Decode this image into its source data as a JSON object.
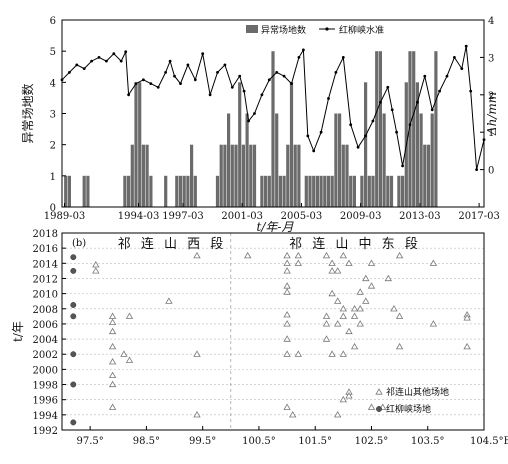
{
  "chart_data": [
    {
      "type": "bar+line",
      "panel": "a",
      "xlabel": "t/年-月",
      "ylabel_left": "异常场地数",
      "ylabel_right": "Δh/mm",
      "x_tick_labels": [
        "1989-03",
        "1994-03",
        "1997-03",
        "2001-03",
        "2005-03",
        "2009-03",
        "2013-03",
        "2017-03"
      ],
      "x_tick_years": [
        1989.17,
        1994.17,
        1997.17,
        2001.17,
        2005.17,
        2009.17,
        2013.17,
        2017.17
      ],
      "x_range": [
        1989.0,
        2017.5
      ],
      "ylim_left": [
        0,
        6
      ],
      "y_ticks_left": [
        0,
        1,
        2,
        3,
        4,
        5,
        6
      ],
      "ylim_right": [
        -1,
        4
      ],
      "y_ticks_right": [
        0,
        1,
        2,
        3,
        4
      ],
      "legend": [
        "异常场地数",
        "红柳峡水准"
      ],
      "bar_start": 1989.25,
      "bar_step": 0.25,
      "bars": [
        1,
        1,
        0,
        0,
        0,
        1,
        1,
        0,
        0,
        0,
        0,
        0,
        0,
        0,
        0,
        0,
        1,
        1,
        2,
        4,
        4,
        2,
        2,
        1,
        0,
        0,
        0,
        1,
        0,
        0,
        1,
        1,
        1,
        1,
        2,
        1,
        0,
        0,
        0,
        0,
        0,
        1,
        2,
        2,
        3,
        2,
        2,
        4,
        2,
        3,
        2,
        2,
        0,
        1,
        1,
        1,
        5,
        3,
        1,
        1,
        2,
        4,
        2,
        2,
        0,
        1,
        1,
        1,
        1,
        1,
        1,
        1,
        1,
        3,
        3,
        2,
        2,
        1,
        1,
        0,
        1,
        4,
        1,
        1,
        5,
        5,
        3,
        1,
        1,
        0,
        1,
        1,
        4,
        5,
        5,
        4,
        3,
        2,
        2,
        3,
        5
      ],
      "level_series": {
        "name": "红柳峡水准",
        "x": [
          1989.0,
          1989.5,
          1990.0,
          1990.5,
          1991.0,
          1991.5,
          1992.0,
          1992.5,
          1993.0,
          1993.3,
          1993.5,
          1994.0,
          1994.5,
          1995.0,
          1995.5,
          1996.0,
          1996.3,
          1996.6,
          1997.0,
          1997.5,
          1998.0,
          1998.5,
          1999.0,
          1999.5,
          2000.0,
          2000.5,
          2001.0,
          2001.3,
          2001.6,
          2002.0,
          2002.5,
          2003.0,
          2003.5,
          2004.0,
          2004.5,
          2005.0,
          2005.3,
          2005.6,
          2006.0,
          2006.5,
          2007.0,
          2007.5,
          2008.0,
          2008.5,
          2009.0,
          2009.5,
          2010.0,
          2010.5,
          2011.0,
          2011.3,
          2011.6,
          2012.0,
          2012.5,
          2013.0,
          2013.5,
          2014.0,
          2014.5,
          2015.0,
          2015.5,
          2016.0,
          2016.3,
          2016.6,
          2017.0,
          2017.5
        ],
        "y": [
          2.4,
          2.6,
          2.8,
          2.7,
          2.9,
          3.0,
          2.9,
          3.1,
          2.9,
          3.15,
          2.0,
          2.3,
          2.4,
          2.3,
          2.2,
          2.6,
          2.9,
          2.5,
          2.3,
          2.8,
          2.4,
          3.1,
          2.0,
          2.6,
          2.8,
          2.2,
          2.5,
          2.1,
          1.3,
          1.5,
          2.0,
          2.4,
          2.6,
          2.5,
          2.3,
          3.0,
          3.2,
          0.9,
          0.5,
          1.0,
          1.9,
          2.6,
          3.0,
          1.2,
          0.6,
          0.9,
          1.3,
          1.8,
          2.2,
          1.6,
          1.0,
          0.1,
          1.2,
          1.8,
          2.5,
          1.6,
          2.1,
          2.5,
          3.0,
          2.7,
          3.3,
          2.1,
          0.0,
          0.8
        ]
      }
    },
    {
      "type": "scatter",
      "panel": "b",
      "panel_label": "(b)",
      "ylabel": "t/年",
      "xlabel_suffix": "E",
      "x_range": [
        97.0,
        104.5
      ],
      "x_ticks": [
        97.5,
        98.5,
        99.5,
        100.5,
        101.5,
        102.5,
        103.5,
        104.5
      ],
      "x_tick_labels": [
        "97.5°",
        "98.5°",
        "99.5°",
        "100.5°",
        "101.5°",
        "102.5°",
        "103.5°",
        "104.5°E"
      ],
      "y_range": [
        1992,
        2018
      ],
      "y_ticks": [
        1992,
        1994,
        1996,
        1998,
        2000,
        2002,
        2004,
        2006,
        2008,
        2010,
        2012,
        2014,
        2016,
        2018
      ],
      "divider_x": 100.0,
      "region_labels": [
        "祁 连 山 西 段",
        "祁 连 山 中 东 段"
      ],
      "legend": [
        "祁连山其他场地",
        "红柳峡场地"
      ],
      "hongliuxia_site": {
        "name": "红柳峡场地",
        "x": 97.2,
        "years": [
          1993.0,
          1998.0,
          2002.0,
          2007.0,
          2008.5,
          2013.0,
          2014.8
        ]
      },
      "other_sites": {
        "name": "祁连山其他场地",
        "points": [
          [
            97.6,
            2013.8
          ],
          [
            97.6,
            2013.0
          ],
          [
            97.9,
            2007.0
          ],
          [
            97.9,
            2006.2
          ],
          [
            98.2,
            2007.0
          ],
          [
            97.9,
            2005.0
          ],
          [
            97.9,
            2003.0
          ],
          [
            98.1,
            2002.0
          ],
          [
            98.2,
            2001.2
          ],
          [
            97.9,
            2001.0
          ],
          [
            97.9,
            1999.2
          ],
          [
            97.9,
            1998.0
          ],
          [
            97.9,
            1995.0
          ],
          [
            98.9,
            2009.0
          ],
          [
            99.4,
            2015.0
          ],
          [
            99.4,
            2002.0
          ],
          [
            99.4,
            1994.0
          ],
          [
            100.3,
            2015.0
          ],
          [
            101.0,
            2015.0
          ],
          [
            101.2,
            2015.0
          ],
          [
            101.0,
            2014.0
          ],
          [
            101.2,
            2014.0
          ],
          [
            101.0,
            2013.0
          ],
          [
            101.0,
            2011.0
          ],
          [
            101.0,
            2010.2
          ],
          [
            101.0,
            2007.2
          ],
          [
            101.0,
            2006.0
          ],
          [
            101.0,
            2004.0
          ],
          [
            101.2,
            2002.0
          ],
          [
            101.0,
            2002.0
          ],
          [
            101.0,
            1995.0
          ],
          [
            101.1,
            1994.0
          ],
          [
            101.7,
            2015.0
          ],
          [
            101.8,
            2014.0
          ],
          [
            101.8,
            2013.0
          ],
          [
            101.9,
            2013.0
          ],
          [
            102.0,
            2015.0
          ],
          [
            102.1,
            2014.0
          ],
          [
            101.8,
            2010.0
          ],
          [
            101.9,
            2009.0
          ],
          [
            102.0,
            2008.0
          ],
          [
            101.7,
            2007.0
          ],
          [
            102.0,
            2007.0
          ],
          [
            101.7,
            2006.0
          ],
          [
            101.9,
            2006.0
          ],
          [
            102.1,
            2005.0
          ],
          [
            101.7,
            2004.0
          ],
          [
            102.0,
            2002.0
          ],
          [
            101.8,
            2002.0
          ],
          [
            102.2,
            2003.0
          ],
          [
            102.1,
            1997.0
          ],
          [
            102.1,
            1996.5
          ],
          [
            102.0,
            1996.0
          ],
          [
            101.9,
            1994.0
          ],
          [
            102.3,
            2010.2
          ],
          [
            102.4,
            2009.0
          ],
          [
            102.2,
            2008.0
          ],
          [
            102.3,
            2008.0
          ],
          [
            102.2,
            2007.0
          ],
          [
            102.3,
            2006.0
          ],
          [
            102.5,
            2014.0
          ],
          [
            102.4,
            2012.0
          ],
          [
            102.5,
            2011.0
          ],
          [
            102.8,
            2012.0
          ],
          [
            102.9,
            2008.0
          ],
          [
            103.0,
            2015.0
          ],
          [
            103.0,
            2007.0
          ],
          [
            103.0,
            2003.0
          ],
          [
            102.7,
            1995.0
          ],
          [
            102.5,
            1995.0
          ],
          [
            103.6,
            2014.0
          ],
          [
            103.6,
            2006.0
          ],
          [
            104.2,
            2007.2
          ],
          [
            104.2,
            2006.8
          ],
          [
            104.2,
            2003.0
          ]
        ]
      }
    }
  ]
}
